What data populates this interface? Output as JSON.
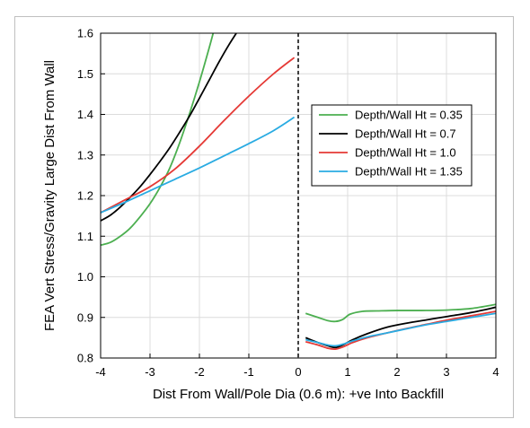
{
  "chart_data": {
    "type": "line",
    "title": "",
    "xlabel": "Dist From Wall/Pole Dia (0.6 m): +ve Into Backfill",
    "ylabel": "FEA Vert  Stress/Gravity Large Dist From Wall",
    "xlim": [
      -4,
      4
    ],
    "ylim": [
      0.8,
      1.6
    ],
    "xticks": [
      -4,
      -3,
      -2,
      -1,
      0,
      1,
      2,
      3,
      4
    ],
    "xtick_labels": [
      "-4",
      "-3",
      "-2",
      "-1",
      "0",
      "1",
      "2",
      "3",
      "4"
    ],
    "yticks": [
      0.8,
      0.9,
      1.0,
      1.1,
      1.2,
      1.3,
      1.4,
      1.5,
      1.6
    ],
    "ytick_labels": [
      "0.8",
      "0.9",
      "1.0",
      "1.1",
      "1.2",
      "1.3",
      "1.4",
      "1.5",
      "1.6"
    ],
    "grid": true,
    "legend_position": "right",
    "wall_line_x": 0,
    "series": [
      {
        "name": "Depth/Wall Ht = 0.35",
        "color": "#4caf50",
        "segments": [
          [
            [
              -4.0,
              1.078
            ],
            [
              -3.8,
              1.085
            ],
            [
              -3.6,
              1.1
            ],
            [
              -3.4,
              1.12
            ],
            [
              -3.2,
              1.148
            ],
            [
              -3.0,
              1.18
            ],
            [
              -2.8,
              1.22
            ],
            [
              -2.6,
              1.268
            ],
            [
              -2.4,
              1.33
            ],
            [
              -2.2,
              1.402
            ],
            [
              -2.0,
              1.48
            ],
            [
              -1.8,
              1.565
            ],
            [
              -1.7,
              1.61
            ]
          ],
          [
            [
              0.15,
              0.91
            ],
            [
              0.4,
              0.9
            ],
            [
              0.6,
              0.892
            ],
            [
              0.75,
              0.89
            ],
            [
              0.9,
              0.895
            ],
            [
              1.05,
              0.908
            ],
            [
              1.3,
              0.915
            ],
            [
              1.6,
              0.916
            ],
            [
              2.0,
              0.917
            ],
            [
              2.5,
              0.917
            ],
            [
              3.0,
              0.918
            ],
            [
              3.5,
              0.922
            ],
            [
              4.0,
              0.932
            ]
          ]
        ]
      },
      {
        "name": "Depth/Wall Ht = 0.7",
        "color": "#000000",
        "segments": [
          [
            [
              -4.0,
              1.138
            ],
            [
              -3.8,
              1.152
            ],
            [
              -3.6,
              1.172
            ],
            [
              -3.4,
              1.196
            ],
            [
              -3.2,
              1.222
            ],
            [
              -3.0,
              1.252
            ],
            [
              -2.8,
              1.284
            ],
            [
              -2.6,
              1.318
            ],
            [
              -2.4,
              1.356
            ],
            [
              -2.2,
              1.396
            ],
            [
              -2.0,
              1.44
            ],
            [
              -1.8,
              1.485
            ],
            [
              -1.6,
              1.53
            ],
            [
              -1.4,
              1.572
            ],
            [
              -1.2,
              1.61
            ]
          ],
          [
            [
              0.15,
              0.85
            ],
            [
              0.4,
              0.838
            ],
            [
              0.6,
              0.83
            ],
            [
              0.75,
              0.826
            ],
            [
              0.9,
              0.832
            ],
            [
              1.1,
              0.845
            ],
            [
              1.4,
              0.86
            ],
            [
              1.8,
              0.876
            ],
            [
              2.2,
              0.886
            ],
            [
              2.6,
              0.894
            ],
            [
              3.0,
              0.902
            ],
            [
              3.5,
              0.912
            ],
            [
              4.0,
              0.925
            ]
          ]
        ]
      },
      {
        "name": "Depth/Wall Ht = 1.0",
        "color": "#e53935",
        "segments": [
          [
            [
              -4.0,
              1.158
            ],
            [
              -3.5,
              1.19
            ],
            [
              -3.0,
              1.222
            ],
            [
              -2.5,
              1.265
            ],
            [
              -2.0,
              1.322
            ],
            [
              -1.5,
              1.385
            ],
            [
              -1.0,
              1.445
            ],
            [
              -0.5,
              1.5
            ],
            [
              -0.08,
              1.54
            ]
          ],
          [
            [
              0.15,
              0.84
            ],
            [
              0.4,
              0.832
            ],
            [
              0.6,
              0.824
            ],
            [
              0.75,
              0.822
            ],
            [
              0.9,
              0.827
            ],
            [
              1.1,
              0.838
            ],
            [
              1.4,
              0.85
            ],
            [
              1.8,
              0.862
            ],
            [
              2.2,
              0.873
            ],
            [
              2.6,
              0.883
            ],
            [
              3.0,
              0.893
            ],
            [
              3.5,
              0.904
            ],
            [
              4.0,
              0.915
            ]
          ]
        ]
      },
      {
        "name": "Depth/Wall Ht = 1.35",
        "color": "#29abe2",
        "segments": [
          [
            [
              -4.0,
              1.158
            ],
            [
              -3.5,
              1.184
            ],
            [
              -3.0,
              1.212
            ],
            [
              -2.5,
              1.24
            ],
            [
              -2.0,
              1.268
            ],
            [
              -1.5,
              1.298
            ],
            [
              -1.0,
              1.328
            ],
            [
              -0.5,
              1.36
            ],
            [
              -0.08,
              1.393
            ]
          ],
          [
            [
              0.15,
              0.845
            ],
            [
              0.4,
              0.838
            ],
            [
              0.6,
              0.832
            ],
            [
              0.75,
              0.83
            ],
            [
              0.9,
              0.834
            ],
            [
              1.1,
              0.842
            ],
            [
              1.4,
              0.852
            ],
            [
              1.8,
              0.862
            ],
            [
              2.2,
              0.872
            ],
            [
              2.6,
              0.882
            ],
            [
              3.0,
              0.89
            ],
            [
              3.5,
              0.9
            ],
            [
              4.0,
              0.91
            ]
          ]
        ]
      }
    ]
  }
}
